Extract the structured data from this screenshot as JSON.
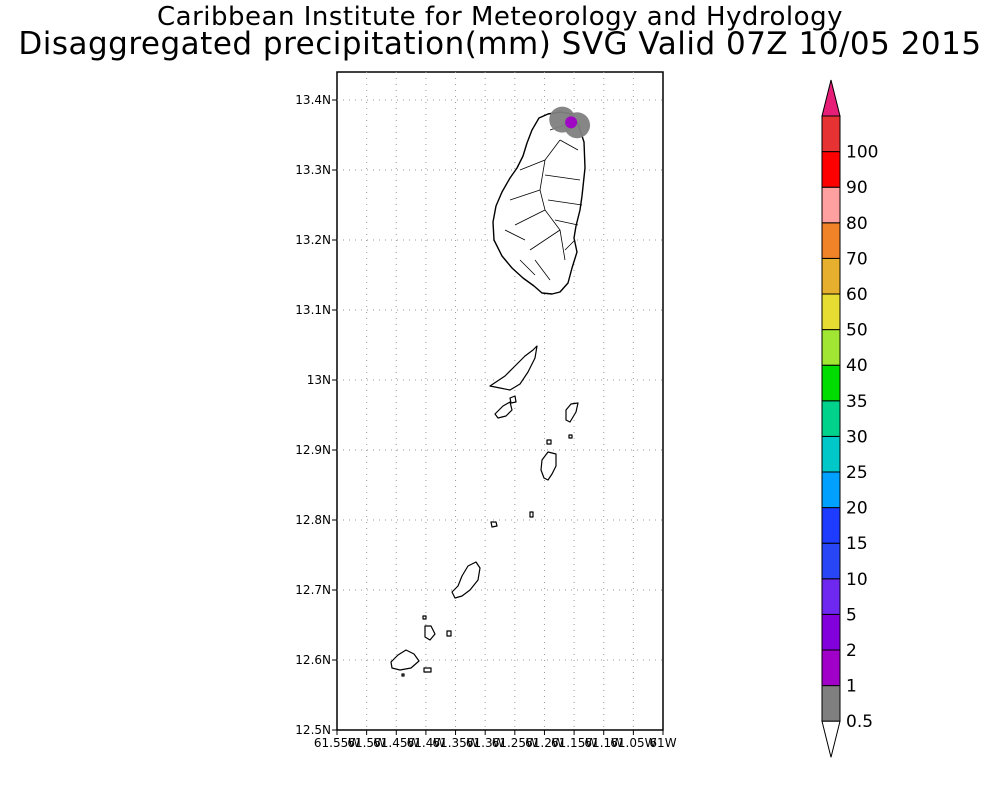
{
  "header": {
    "title": "Caribbean Institute for Meteorology and Hydrology",
    "subtitle": "Disaggregated precipitation(mm) SVG Valid 07Z 10/05 2015"
  },
  "axes": {
    "lat_ticks": [
      "13.4N",
      "13.3N",
      "13.2N",
      "13.1N",
      "13N",
      "12.9N",
      "12.8N",
      "12.7N",
      "12.6N",
      "12.5N"
    ],
    "lon_ticks": [
      "61.55W",
      "61.5W",
      "61.45W",
      "61.4W",
      "61.35W",
      "61.3W",
      "61.25W",
      "61.2W",
      "61.15W",
      "61.1W",
      "61.05W",
      "61W"
    ],
    "lat_range": [
      12.5,
      13.44
    ],
    "lon_range": [
      -61.55,
      -61.0
    ]
  },
  "colorbar": {
    "levels": [
      "0.5",
      "1",
      "2",
      "5",
      "10",
      "15",
      "20",
      "25",
      "30",
      "35",
      "40",
      "50",
      "60",
      "70",
      "80",
      "90",
      "100"
    ],
    "colors": [
      "#7f7f7f",
      "#a000c8",
      "#8200dc",
      "#6e28f0",
      "#2846f5",
      "#1e3cff",
      "#00a0ff",
      "#00c8c8",
      "#00d28c",
      "#00dc00",
      "#a0e632",
      "#e6dc32",
      "#e6af2d",
      "#f08228",
      "#ffa0a0",
      "#ff0000",
      "#e63232"
    ],
    "top_color": "#e61e78",
    "bottom_color": "#ffffff"
  },
  "precip_cells": [
    {
      "lat": 13.364,
      "lon": -61.145,
      "value": 0.7
    },
    {
      "lat": 13.372,
      "lon": -61.17,
      "value": 0.7
    },
    {
      "lat": 13.368,
      "lon": -61.155,
      "value": 1.5
    }
  ]
}
